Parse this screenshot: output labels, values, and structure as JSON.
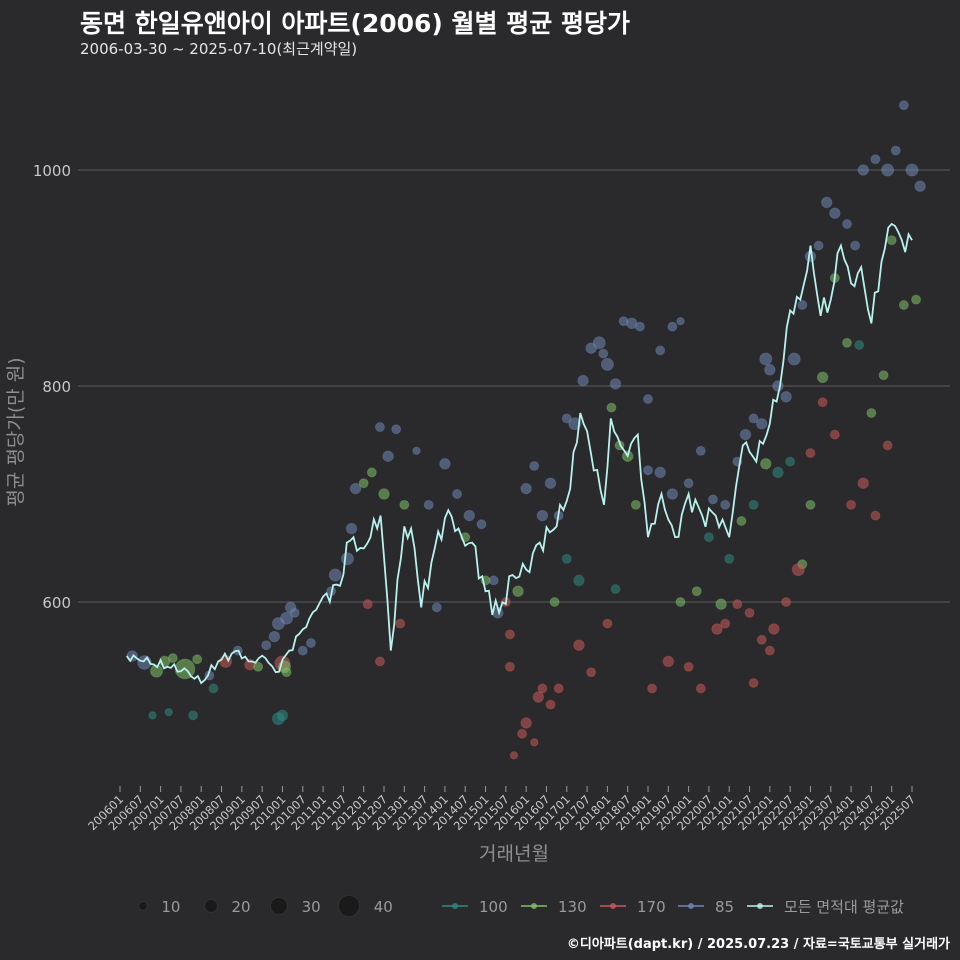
{
  "title": "동면 한일유앤아이 아파트(2006) 월별 평균 평당가",
  "subtitle": "2006-03-30 ~ 2025-07-10(최근계약일)",
  "caption": "©디아파트(dapt.kr) / 2025.07.23 / 자료=국토교통부 실거래가",
  "chart_data": {
    "type": "line",
    "xlabel": "거래년월",
    "ylabel": "평균 평당가(만 원)",
    "ylim": [
      430,
      1070
    ],
    "yticks": [
      600,
      800,
      1000
    ],
    "grid": true,
    "x_tick_labels": [
      "200601",
      "200607",
      "200701",
      "200707",
      "200801",
      "200807",
      "200901",
      "200907",
      "201001",
      "201007",
      "201101",
      "201107",
      "201201",
      "201207",
      "201301",
      "201307",
      "201401",
      "201407",
      "201501",
      "201507",
      "201601",
      "201607",
      "201701",
      "201707",
      "201801",
      "201807",
      "201901",
      "201907",
      "202001",
      "202007",
      "202101",
      "202107",
      "202201",
      "202207",
      "202301",
      "202307",
      "202401",
      "202407",
      "202501",
      "202507"
    ],
    "size_legend": [
      10,
      20,
      30,
      40
    ],
    "size_legend_title": "",
    "series": [
      {
        "name": "100",
        "color": "#2e8a82"
      },
      {
        "name": "130",
        "color": "#7fc06a"
      },
      {
        "name": "170",
        "color": "#c85a5a"
      },
      {
        "name": "85",
        "color": "#6f86b5"
      },
      {
        "name": "모든 면적대 평균값",
        "color": "#b7f2ee"
      }
    ],
    "avg_line": {
      "start": "2006-03",
      "end": "2025-07",
      "keypoints": [
        [
          "2006-03",
          550
        ],
        [
          "2006-08",
          545
        ],
        [
          "2007-03",
          540
        ],
        [
          "2007-09",
          536
        ],
        [
          "2008-01",
          525
        ],
        [
          "2008-06",
          545
        ],
        [
          "2008-12",
          555
        ],
        [
          "2009-03",
          545
        ],
        [
          "2009-08",
          548
        ],
        [
          "2009-11",
          535
        ],
        [
          "2010-03",
          555
        ],
        [
          "2010-09",
          585
        ],
        [
          "2011-01",
          605
        ],
        [
          "2011-06",
          615
        ],
        [
          "2011-08",
          655
        ],
        [
          "2011-10",
          660
        ],
        [
          "2011-12",
          650
        ],
        [
          "2012-03",
          660
        ],
        [
          "2012-06",
          680
        ],
        [
          "2012-09",
          555
        ],
        [
          "2013-01",
          670
        ],
        [
          "2013-04",
          650
        ],
        [
          "2013-06",
          595
        ],
        [
          "2013-10",
          650
        ],
        [
          "2014-02",
          685
        ],
        [
          "2014-06",
          660
        ],
        [
          "2014-09",
          655
        ],
        [
          "2015-01",
          610
        ],
        [
          "2015-05",
          590
        ],
        [
          "2015-09",
          625
        ],
        [
          "2016-01",
          630
        ],
        [
          "2016-05",
          655
        ],
        [
          "2016-10",
          670
        ],
        [
          "2017-02",
          705
        ],
        [
          "2017-05",
          775
        ],
        [
          "2017-08",
          740
        ],
        [
          "2017-12",
          690
        ],
        [
          "2018-02",
          770
        ],
        [
          "2018-06",
          740
        ],
        [
          "2018-10",
          755
        ],
        [
          "2019-01",
          660
        ],
        [
          "2019-05",
          700
        ],
        [
          "2019-09",
          660
        ],
        [
          "2020-01",
          700
        ],
        [
          "2020-05",
          680
        ],
        [
          "2020-09",
          680
        ],
        [
          "2021-01",
          660
        ],
        [
          "2021-05",
          745
        ],
        [
          "2021-09",
          730
        ],
        [
          "2022-01",
          765
        ],
        [
          "2022-04",
          800
        ],
        [
          "2022-07",
          870
        ],
        [
          "2022-10",
          880
        ],
        [
          "2023-01",
          930
        ],
        [
          "2023-04",
          865
        ],
        [
          "2023-07",
          880
        ],
        [
          "2023-10",
          930
        ],
        [
          "2024-01",
          895
        ],
        [
          "2024-04",
          910
        ],
        [
          "2024-07",
          858
        ],
        [
          "2024-10",
          915
        ],
        [
          "2025-01",
          950
        ],
        [
          "2025-04",
          935
        ],
        [
          "2025-07",
          935
        ]
      ]
    },
    "scatter_points": [
      [
        2006.3,
        550,
        8,
        3
      ],
      [
        2006.6,
        544,
        12,
        3
      ],
      [
        2006.9,
        536,
        10,
        1
      ],
      [
        2007.1,
        545,
        8,
        1
      ],
      [
        2007.3,
        548,
        6,
        1
      ],
      [
        2007.6,
        538,
        20,
        1
      ],
      [
        2007.9,
        547,
        6,
        1
      ],
      [
        2007.2,
        498,
        4,
        0
      ],
      [
        2006.8,
        495,
        4,
        0
      ],
      [
        2007.8,
        495,
        6,
        0
      ],
      [
        2008.2,
        532,
        6,
        3
      ],
      [
        2008.3,
        520,
        6,
        0
      ],
      [
        2008.6,
        545,
        10,
        2
      ],
      [
        2008.9,
        555,
        6,
        3
      ],
      [
        2009.2,
        542,
        8,
        2
      ],
      [
        2009.4,
        540,
        6,
        1
      ],
      [
        2009.6,
        560,
        6,
        3
      ],
      [
        2009.8,
        568,
        8,
        3
      ],
      [
        2009.9,
        580,
        10,
        3
      ],
      [
        2010.1,
        585,
        10,
        3
      ],
      [
        2010.2,
        595,
        8,
        3
      ],
      [
        2010.3,
        590,
        6,
        3
      ],
      [
        2010.0,
        543,
        14,
        2
      ],
      [
        2010.05,
        540,
        10,
        1
      ],
      [
        2010.1,
        535,
        6,
        1
      ],
      [
        2009.9,
        492,
        10,
        0
      ],
      [
        2010.0,
        495,
        8,
        0
      ],
      [
        2010.5,
        555,
        6,
        3
      ],
      [
        2010.7,
        562,
        6,
        3
      ],
      [
        2011.2,
        610,
        6,
        3
      ],
      [
        2011.3,
        625,
        10,
        3
      ],
      [
        2011.6,
        640,
        10,
        3
      ],
      [
        2011.7,
        668,
        8,
        3
      ],
      [
        2011.8,
        705,
        8,
        3
      ],
      [
        2012.0,
        710,
        6,
        1
      ],
      [
        2012.2,
        720,
        6,
        1
      ],
      [
        2012.4,
        762,
        6,
        3
      ],
      [
        2012.6,
        735,
        8,
        3
      ],
      [
        2012.8,
        760,
        6,
        3
      ],
      [
        2012.1,
        598,
        6,
        2
      ],
      [
        2012.4,
        545,
        6,
        2
      ],
      [
        2012.9,
        580,
        6,
        2
      ],
      [
        2013.3,
        740,
        4,
        3
      ],
      [
        2013.6,
        690,
        6,
        3
      ],
      [
        2013.8,
        595,
        6,
        3
      ],
      [
        2014.0,
        728,
        8,
        3
      ],
      [
        2014.3,
        700,
        6,
        3
      ],
      [
        2014.6,
        680,
        8,
        3
      ],
      [
        2014.9,
        672,
        6,
        3
      ],
      [
        2015.2,
        620,
        6,
        3
      ],
      [
        2015.3,
        590,
        8,
        3
      ],
      [
        2015.5,
        600,
        6,
        2
      ],
      [
        2015.6,
        570,
        6,
        2
      ],
      [
        2015.6,
        540,
        6,
        2
      ],
      [
        2015.7,
        458,
        4,
        2
      ],
      [
        2015.9,
        478,
        6,
        2
      ],
      [
        2016.0,
        488,
        8,
        2
      ],
      [
        2016.2,
        470,
        4,
        2
      ],
      [
        2016.3,
        512,
        8,
        2
      ],
      [
        2016.4,
        520,
        6,
        2
      ],
      [
        2016.6,
        505,
        6,
        2
      ],
      [
        2016.8,
        520,
        6,
        2
      ],
      [
        2016.0,
        705,
        8,
        3
      ],
      [
        2016.2,
        726,
        6,
        3
      ],
      [
        2016.4,
        680,
        8,
        3
      ],
      [
        2016.6,
        710,
        8,
        3
      ],
      [
        2016.8,
        680,
        6,
        3
      ],
      [
        2017.0,
        770,
        6,
        3
      ],
      [
        2017.2,
        765,
        10,
        3
      ],
      [
        2017.4,
        805,
        8,
        3
      ],
      [
        2017.6,
        835,
        8,
        3
      ],
      [
        2017.8,
        840,
        10,
        3
      ],
      [
        2017.9,
        830,
        6,
        3
      ],
      [
        2018.0,
        820,
        10,
        3
      ],
      [
        2018.2,
        802,
        8,
        3
      ],
      [
        2018.4,
        860,
        6,
        3
      ],
      [
        2018.6,
        858,
        8,
        3
      ],
      [
        2018.8,
        855,
        6,
        3
      ],
      [
        2019.0,
        788,
        6,
        3
      ],
      [
        2019.3,
        833,
        6,
        3
      ],
      [
        2019.6,
        855,
        6,
        3
      ],
      [
        2019.8,
        860,
        4,
        3
      ],
      [
        2018.1,
        780,
        6,
        1
      ],
      [
        2018.3,
        745,
        6,
        1
      ],
      [
        2018.5,
        735,
        8,
        1
      ],
      [
        2018.7,
        690,
        6,
        1
      ],
      [
        2017.0,
        640,
        6,
        0
      ],
      [
        2017.3,
        620,
        8,
        0
      ],
      [
        2017.3,
        560,
        8,
        2
      ],
      [
        2017.6,
        535,
        6,
        2
      ],
      [
        2018.0,
        580,
        6,
        2
      ],
      [
        2018.2,
        612,
        6,
        0
      ],
      [
        2019.0,
        722,
        6,
        3
      ],
      [
        2019.3,
        720,
        8,
        3
      ],
      [
        2019.6,
        700,
        8,
        3
      ],
      [
        2020.0,
        710,
        6,
        3
      ],
      [
        2020.3,
        740,
        6,
        3
      ],
      [
        2020.6,
        695,
        6,
        3
      ],
      [
        2020.9,
        690,
        6,
        3
      ],
      [
        2021.2,
        730,
        6,
        3
      ],
      [
        2021.4,
        755,
        8,
        3
      ],
      [
        2021.6,
        770,
        6,
        3
      ],
      [
        2021.8,
        765,
        8,
        3
      ],
      [
        2021.9,
        825,
        10,
        3
      ],
      [
        2022.0,
        815,
        8,
        3
      ],
      [
        2022.2,
        800,
        8,
        3
      ],
      [
        2022.4,
        790,
        8,
        3
      ],
      [
        2022.6,
        825,
        10,
        3
      ],
      [
        2022.8,
        875,
        6,
        3
      ],
      [
        2023.0,
        920,
        8,
        3
      ],
      [
        2023.2,
        930,
        6,
        3
      ],
      [
        2023.4,
        970,
        8,
        3
      ],
      [
        2023.6,
        960,
        8,
        3
      ],
      [
        2023.9,
        950,
        6,
        3
      ],
      [
        2024.1,
        930,
        6,
        3
      ],
      [
        2024.3,
        1000,
        8,
        3
      ],
      [
        2024.6,
        1010,
        6,
        3
      ],
      [
        2024.9,
        1000,
        10,
        3
      ],
      [
        2025.1,
        1018,
        6,
        3
      ],
      [
        2025.3,
        1060,
        6,
        3
      ],
      [
        2025.5,
        1000,
        10,
        3
      ],
      [
        2025.7,
        985,
        8,
        3
      ],
      [
        2019.8,
        600,
        6,
        1
      ],
      [
        2020.2,
        610,
        6,
        1
      ],
      [
        2020.5,
        660,
        6,
        0
      ],
      [
        2020.8,
        598,
        8,
        1
      ],
      [
        2021.0,
        640,
        6,
        0
      ],
      [
        2021.3,
        675,
        6,
        1
      ],
      [
        2021.6,
        690,
        6,
        0
      ],
      [
        2021.9,
        728,
        8,
        1
      ],
      [
        2022.2,
        720,
        8,
        0
      ],
      [
        2022.5,
        730,
        6,
        0
      ],
      [
        2022.8,
        635,
        6,
        1
      ],
      [
        2023.0,
        690,
        6,
        1
      ],
      [
        2023.3,
        808,
        8,
        1
      ],
      [
        2023.6,
        900,
        6,
        1
      ],
      [
        2023.9,
        840,
        6,
        1
      ],
      [
        2024.2,
        838,
        6,
        0
      ],
      [
        2024.5,
        775,
        6,
        1
      ],
      [
        2024.8,
        810,
        6,
        1
      ],
      [
        2025.0,
        935,
        6,
        1
      ],
      [
        2025.3,
        875,
        6,
        1
      ],
      [
        2025.6,
        880,
        6,
        1
      ],
      [
        2019.1,
        520,
        6,
        2
      ],
      [
        2019.5,
        545,
        8,
        2
      ],
      [
        2020.0,
        540,
        6,
        2
      ],
      [
        2020.3,
        520,
        6,
        2
      ],
      [
        2020.7,
        575,
        8,
        2
      ],
      [
        2020.9,
        580,
        6,
        2
      ],
      [
        2021.2,
        598,
        6,
        2
      ],
      [
        2021.5,
        590,
        6,
        2
      ],
      [
        2021.8,
        565,
        6,
        2
      ],
      [
        2022.1,
        575,
        8,
        2
      ],
      [
        2022.4,
        600,
        6,
        2
      ],
      [
        2022.7,
        630,
        10,
        2
      ],
      [
        2023.0,
        738,
        6,
        2
      ],
      [
        2023.3,
        785,
        6,
        2
      ],
      [
        2023.6,
        755,
        6,
        2
      ],
      [
        2024.0,
        690,
        6,
        2
      ],
      [
        2024.3,
        710,
        8,
        2
      ],
      [
        2024.6,
        680,
        6,
        2
      ],
      [
        2024.9,
        745,
        6,
        2
      ],
      [
        2021.6,
        525,
        6,
        2
      ],
      [
        2022.0,
        555,
        6,
        2
      ],
      [
        2012.5,
        700,
        8,
        1
      ],
      [
        2013.0,
        690,
        6,
        1
      ],
      [
        2014.5,
        660,
        6,
        1
      ],
      [
        2015.0,
        620,
        6,
        1
      ],
      [
        2015.8,
        610,
        8,
        1
      ],
      [
        2016.7,
        600,
        6,
        1
      ]
    ]
  }
}
